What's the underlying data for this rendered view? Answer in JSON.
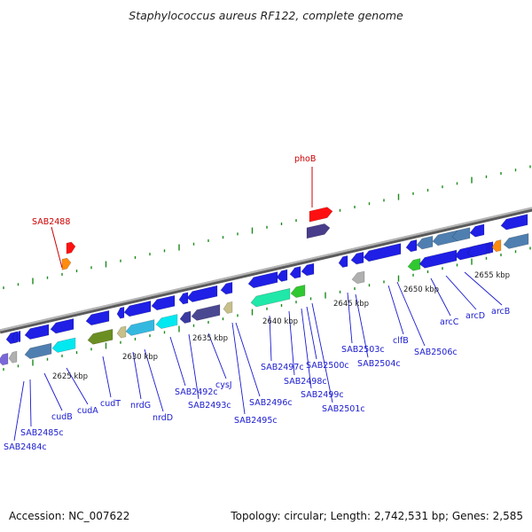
{
  "title": "Staphylococcus aureus RF122, complete genome",
  "footer": {
    "accession": "Accession: NC_007622",
    "summary": "Topology: circular; Length: 2,742,531 bp; Genes: 2,585"
  },
  "colors": {
    "backbone": "#8a8a8a",
    "tick": "#1a8a1a",
    "gene_label": "#1a1ad0",
    "highlight_label": "#cc0000",
    "title": "#222222"
  },
  "kbp_labels": [
    "2625 kbp",
    "2630 kbp",
    "2635 kbp",
    "2640 kbp",
    "2645 kbp",
    "2650 kbp",
    "2655 kbp"
  ],
  "highlighted_genes": [
    {
      "name": "phoB",
      "color": "#ff1010"
    },
    {
      "name": "SAB2488",
      "color": "#ff1010"
    }
  ],
  "gene_labels": [
    "SAB2484c",
    "SAB2485c",
    "cudB",
    "cudA",
    "cudT",
    "nrdG",
    "nrdD",
    "SAB2492c",
    "SAB2493c",
    "cysJ",
    "SAB2495c",
    "SAB2496c",
    "SAB2497c",
    "SAB2498c",
    "SAB2499c",
    "SAB2500c",
    "SAB2501c",
    "SAB2503c",
    "SAB2504c",
    "clfB",
    "SAB2506c",
    "arcC",
    "arcD",
    "arcB"
  ],
  "track_features": [
    {
      "color": "#1f1fe6",
      "strand": "reverse"
    },
    {
      "color": "#1f1fe6",
      "strand": "reverse"
    },
    {
      "color": "#1f1fe6",
      "strand": "reverse"
    },
    {
      "color": "#7b68d8",
      "strand": "reverse"
    },
    {
      "color": "#b0b0b0",
      "strand": "reverse"
    },
    {
      "color": "#4f7fb0",
      "strand": "reverse"
    },
    {
      "color": "#1f1fe6",
      "strand": "reverse"
    },
    {
      "color": "#00e8f0",
      "strand": "reverse"
    },
    {
      "color": "#1f1fe6",
      "strand": "reverse"
    },
    {
      "color": "#6b8e23",
      "strand": "reverse"
    },
    {
      "color": "#1f1fe6",
      "strand": "reverse"
    },
    {
      "color": "#c8c08a",
      "strand": "reverse"
    },
    {
      "color": "#1f1fe6",
      "strand": "reverse"
    },
    {
      "color": "#35b8e0",
      "strand": "reverse"
    },
    {
      "color": "#1f1fe6",
      "strand": "reverse"
    },
    {
      "color": "#00e8f0",
      "strand": "reverse"
    },
    {
      "color": "#1f1fe6",
      "strand": "reverse"
    },
    {
      "color": "#3a3aa0",
      "strand": "reverse"
    },
    {
      "color": "#1f1fe6",
      "strand": "reverse"
    },
    {
      "color": "#4a4890",
      "strand": "reverse"
    },
    {
      "color": "#1f1fe6",
      "strand": "reverse"
    },
    {
      "color": "#c8c08a",
      "strand": "reverse"
    },
    {
      "color": "#1f1fe6",
      "strand": "reverse"
    },
    {
      "color": "#20e8a8",
      "strand": "reverse"
    },
    {
      "color": "#1f1fe6",
      "strand": "reverse"
    },
    {
      "color": "#1f1fe6",
      "strand": "reverse"
    },
    {
      "color": "#30c830",
      "strand": "reverse"
    },
    {
      "color": "#1f1fe6",
      "strand": "reverse"
    },
    {
      "color": "#1f1fe6",
      "strand": "reverse"
    },
    {
      "color": "#483d8b",
      "strand": "forward"
    },
    {
      "color": "#ff1010",
      "strand": "forward"
    },
    {
      "color": "#1f1fe6",
      "strand": "reverse"
    },
    {
      "color": "#b0b0b0",
      "strand": "reverse"
    },
    {
      "color": "#1f1fe6",
      "strand": "reverse"
    },
    {
      "color": "#1f1fe6",
      "strand": "reverse"
    },
    {
      "color": "#1f1fe6",
      "strand": "reverse"
    },
    {
      "color": "#30c830",
      "strand": "reverse"
    },
    {
      "color": "#1f1fe6",
      "strand": "reverse"
    },
    {
      "color": "#4f7fb0",
      "strand": "reverse"
    },
    {
      "color": "#1f1fe6",
      "strand": "reverse"
    },
    {
      "color": "#4f7fb0",
      "strand": "reverse"
    },
    {
      "color": "#1f1fe6",
      "strand": "reverse"
    },
    {
      "color": "#4f7fb0",
      "strand": "reverse"
    },
    {
      "color": "#1f1fe6",
      "strand": "reverse"
    },
    {
      "color": "#ff8c10",
      "strand": "reverse"
    },
    {
      "color": "#1f1fe6",
      "strand": "reverse"
    },
    {
      "color": "#4f7fb0",
      "strand": "reverse"
    },
    {
      "color": "#1f1fe6",
      "strand": "reverse"
    },
    {
      "color": "#ff8c10",
      "strand": "forward"
    },
    {
      "color": "#ff1010",
      "strand": "forward"
    }
  ]
}
